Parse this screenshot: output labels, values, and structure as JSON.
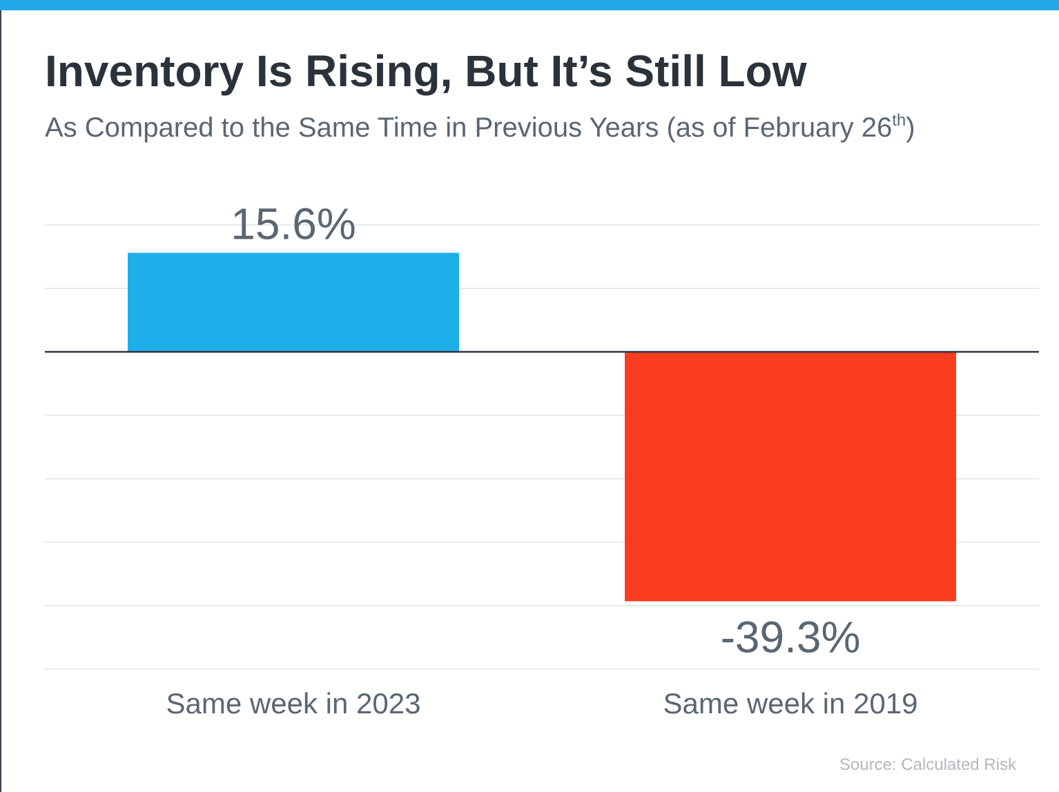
{
  "header": {
    "title": "Inventory Is Rising, But It’s Still Low",
    "subtitle_main": "As Compared to the Same Time in Previous Years (as of February 26",
    "subtitle_sup": "th",
    "subtitle_end": ")"
  },
  "source": "Source: Calculated Risk",
  "colors": {
    "accent_bar": "#22aae8",
    "positive": "#1eaeea",
    "negative": "#fb3d1f",
    "gridline": "#e2e2e2",
    "zero_line": "#2e3440",
    "label_text": "#5a6672"
  },
  "chart_data": {
    "type": "bar",
    "title": "Inventory Is Rising, But It’s Still Low",
    "subtitle": "As Compared to the Same Time in Previous Years (as of February 26th)",
    "categories": [
      "Same week in 2023",
      "Same week in 2019"
    ],
    "values": [
      15.6,
      -39.3
    ],
    "data_labels": [
      "15.6%",
      "-39.3%"
    ],
    "ylim": [
      -50,
      20
    ],
    "grid": true,
    "legend": "none",
    "xlabel": "",
    "ylabel": ""
  }
}
